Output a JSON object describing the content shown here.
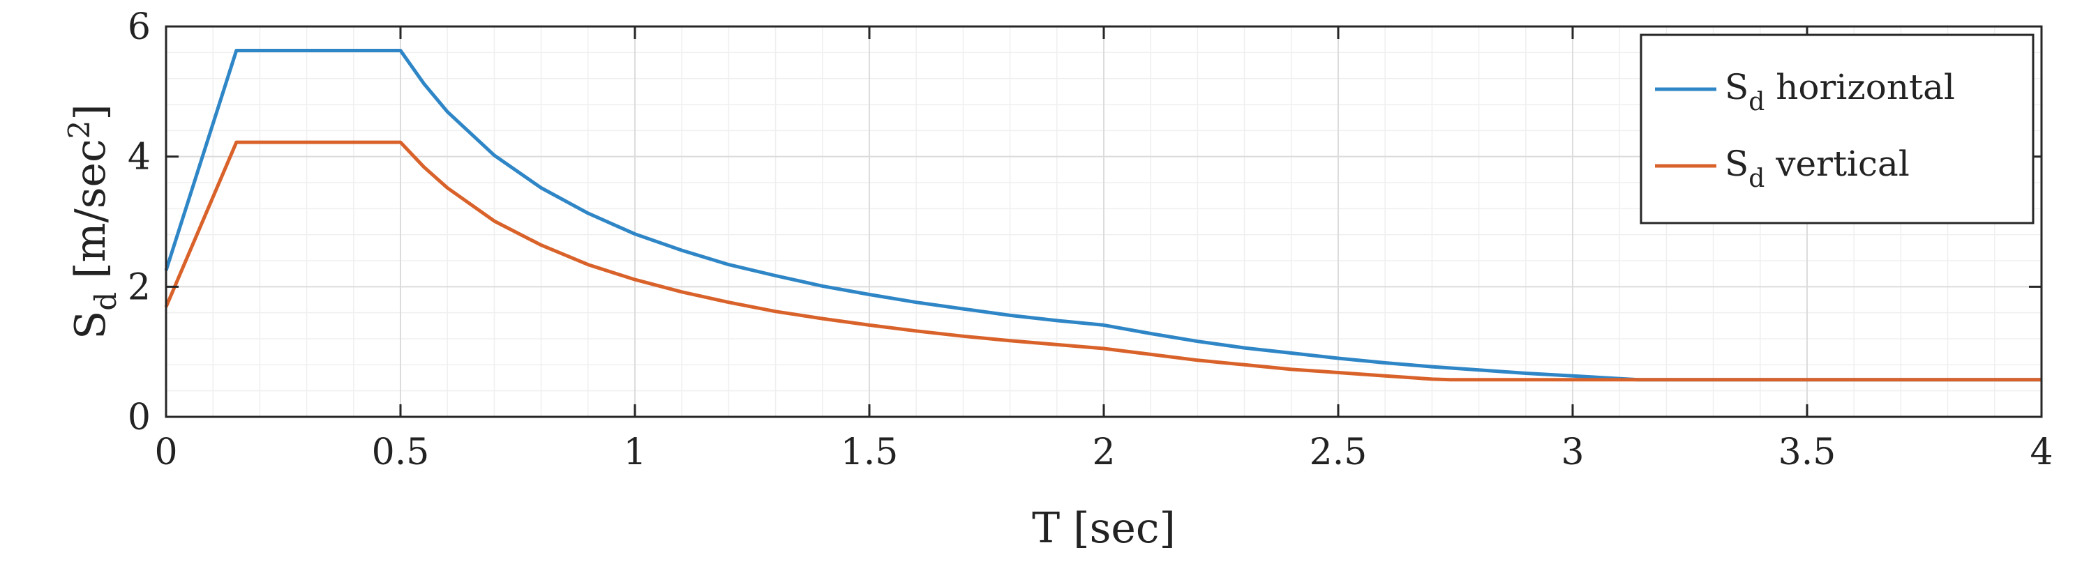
{
  "chart_data": {
    "type": "line",
    "xlabel": "T [sec]",
    "ylabel": "S_d [m/sec^2]",
    "xlim": [
      0,
      4
    ],
    "ylim": [
      0,
      6
    ],
    "xticks": [
      0,
      0.5,
      1,
      1.5,
      2,
      2.5,
      3,
      3.5,
      4
    ],
    "xtick_labels": [
      "0",
      "0.5",
      "1",
      "1.5",
      "2",
      "2.5",
      "3",
      "3.5",
      "4"
    ],
    "yticks": [
      0,
      2,
      4,
      6
    ],
    "ytick_labels": [
      "0",
      "2",
      "4",
      "6"
    ],
    "grid": true,
    "minor_grid": true,
    "legend_position": "top-right",
    "series": [
      {
        "name": "S_d horizontal",
        "legend_main": "S",
        "legend_sub": "d",
        "legend_rest": " horizontal",
        "color": "#2f86c6",
        "points": [
          [
            0,
            2.25
          ],
          [
            0.15,
            5.63
          ],
          [
            0.5,
            5.63
          ],
          [
            0.55,
            5.12
          ],
          [
            0.6,
            4.69
          ],
          [
            0.7,
            4.02
          ],
          [
            0.8,
            3.52
          ],
          [
            0.9,
            3.13
          ],
          [
            1.0,
            2.81
          ],
          [
            1.1,
            2.56
          ],
          [
            1.2,
            2.34
          ],
          [
            1.3,
            2.17
          ],
          [
            1.4,
            2.01
          ],
          [
            1.5,
            1.88
          ],
          [
            1.6,
            1.76
          ],
          [
            1.7,
            1.66
          ],
          [
            1.8,
            1.56
          ],
          [
            1.9,
            1.48
          ],
          [
            2.0,
            1.41
          ],
          [
            2.1,
            1.28
          ],
          [
            2.2,
            1.16
          ],
          [
            2.3,
            1.06
          ],
          [
            2.4,
            0.98
          ],
          [
            2.5,
            0.9
          ],
          [
            2.6,
            0.83
          ],
          [
            2.7,
            0.77
          ],
          [
            2.8,
            0.72
          ],
          [
            2.9,
            0.67
          ],
          [
            3.0,
            0.63
          ],
          [
            3.14,
            0.57
          ],
          [
            4.0,
            0.57
          ]
        ]
      },
      {
        "name": "S_d vertical",
        "legend_main": "S",
        "legend_sub": "d",
        "legend_rest": " vertical",
        "color": "#d9622b",
        "points": [
          [
            0,
            1.69
          ],
          [
            0.15,
            4.22
          ],
          [
            0.5,
            4.22
          ],
          [
            0.55,
            3.84
          ],
          [
            0.6,
            3.52
          ],
          [
            0.7,
            3.01
          ],
          [
            0.8,
            2.64
          ],
          [
            0.9,
            2.34
          ],
          [
            1.0,
            2.11
          ],
          [
            1.1,
            1.92
          ],
          [
            1.2,
            1.76
          ],
          [
            1.3,
            1.62
          ],
          [
            1.4,
            1.51
          ],
          [
            1.5,
            1.41
          ],
          [
            1.6,
            1.32
          ],
          [
            1.7,
            1.24
          ],
          [
            1.8,
            1.17
          ],
          [
            1.9,
            1.11
          ],
          [
            2.0,
            1.05
          ],
          [
            2.1,
            0.96
          ],
          [
            2.2,
            0.87
          ],
          [
            2.3,
            0.8
          ],
          [
            2.4,
            0.73
          ],
          [
            2.5,
            0.68
          ],
          [
            2.6,
            0.63
          ],
          [
            2.7,
            0.58
          ],
          [
            2.74,
            0.57
          ],
          [
            4.0,
            0.57
          ]
        ]
      }
    ]
  }
}
